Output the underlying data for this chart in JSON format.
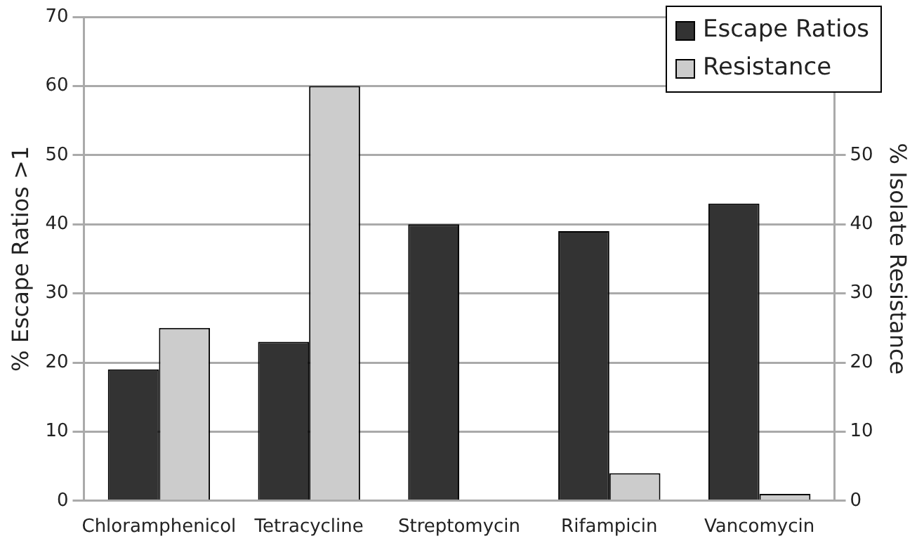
{
  "chart_data": {
    "type": "bar",
    "ylabel": "% Escape Ratios >1",
    "y2label": "% Isolate Resistance",
    "categories": [
      "Chloramphenicol",
      "Tetracycline",
      "Streptomycin",
      "Rifampicin",
      "Vancomycin"
    ],
    "series": [
      {
        "name": "Escape Ratios",
        "color": "#333333",
        "values": [
          19,
          23,
          40,
          39,
          43
        ]
      },
      {
        "name": "Resistance",
        "color": "#cccccc",
        "values": [
          25,
          60,
          0,
          4,
          1
        ]
      }
    ],
    "ylim": [
      0,
      70
    ],
    "yticks": [
      0,
      10,
      20,
      30,
      40,
      50,
      60,
      70
    ],
    "y2lim": [
      0,
      70
    ],
    "y2ticks": [
      0,
      10,
      20,
      30,
      40,
      50
    ],
    "grid": "y",
    "legend": "top right"
  }
}
